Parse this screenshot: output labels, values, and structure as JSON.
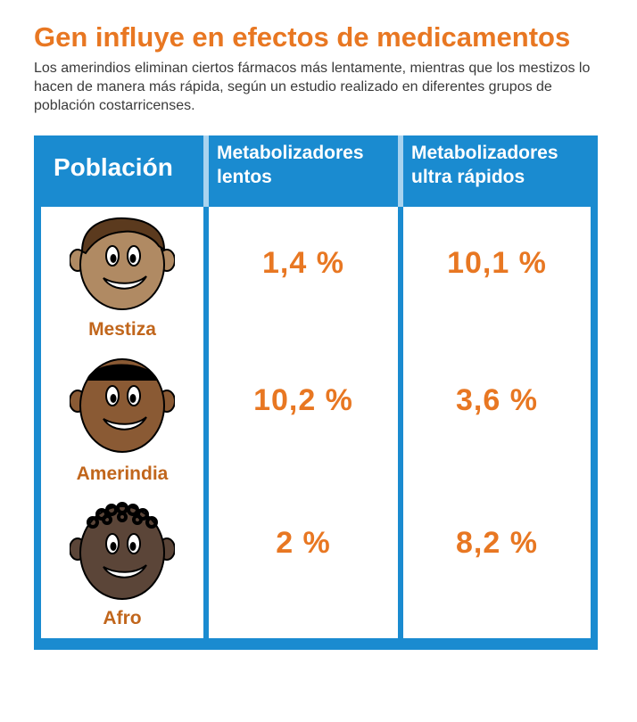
{
  "title": "Gen influye en efectos de medicamentos",
  "subtitle": "Los amerindios eliminan ciertos fármacos más lentamente, mientras que los mestizos lo hacen de manera más rápida, según un estudio realizado en diferentes grupos de población costarricenses.",
  "colors": {
    "accent": "#e87722",
    "header_blue": "#1a8bd0",
    "label_brown": "#c1661c"
  },
  "chart_data": {
    "type": "table",
    "columns": [
      "Población",
      "Metabolizadores lentos",
      "Metabolizadores ultra rápidos"
    ],
    "header": {
      "poblacion": "Población",
      "slow_line1": "Metabolizadores",
      "slow_line2": "lentos",
      "fast_line1": "Metabolizadores",
      "fast_line2": "ultra rápidos"
    },
    "rows": [
      {
        "population": "Mestiza",
        "slow": "1,4 %",
        "ultra_fast": "10,1 %",
        "slow_value": 1.4,
        "ultra_fast_value": 10.1,
        "icon": "mestiza-face-icon"
      },
      {
        "population": "Amerindia",
        "slow": "10,2 %",
        "ultra_fast": "3,6 %",
        "slow_value": 10.2,
        "ultra_fast_value": 3.6,
        "icon": "amerindia-face-icon"
      },
      {
        "population": "Afro",
        "slow": "2 %",
        "ultra_fast": "8,2 %",
        "slow_value": 2,
        "ultra_fast_value": 8.2,
        "icon": "afro-face-icon"
      }
    ]
  }
}
